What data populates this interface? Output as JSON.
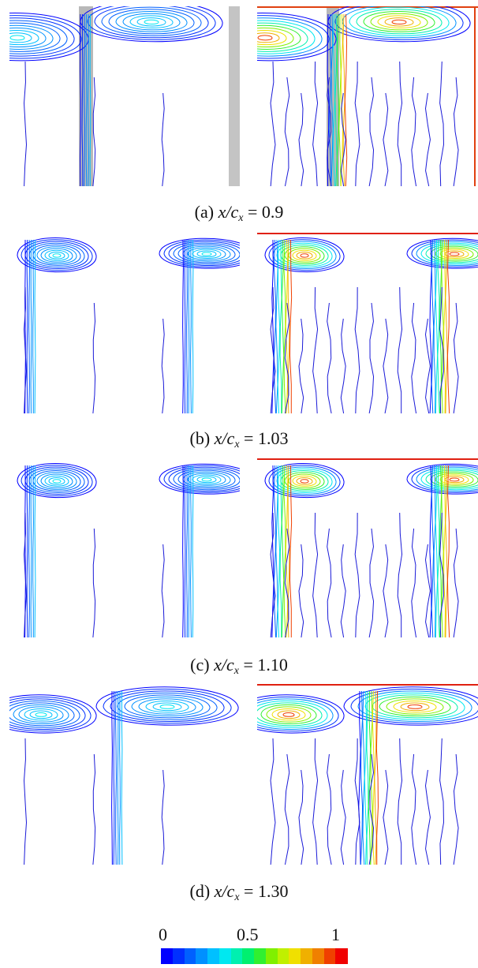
{
  "figure": {
    "panels": [
      {
        "label": "(a)",
        "var": "x/c",
        "sub": "x",
        "eq": "= 0.9",
        "style": "a"
      },
      {
        "label": "(b)",
        "var": "x/c",
        "sub": "x",
        "eq": "= 1.03",
        "style": "b"
      },
      {
        "label": "(c)",
        "var": "x/c",
        "sub": "x",
        "eq": "= 1.10",
        "style": "c"
      },
      {
        "label": "(d)",
        "var": "x/c",
        "sub": "x",
        "eq": "= 1.30",
        "style": "d"
      }
    ],
    "colorbar": {
      "ticks": [
        "0",
        "0.5",
        "1"
      ],
      "colors": [
        "#0000ff",
        "#0030ff",
        "#0060ff",
        "#0090ff",
        "#00c0ff",
        "#00e8f0",
        "#00f0b0",
        "#00f070",
        "#30f030",
        "#80f000",
        "#c0f000",
        "#f0e000",
        "#f0b000",
        "#f08000",
        "#f04000",
        "#f00000"
      ]
    }
  }
}
